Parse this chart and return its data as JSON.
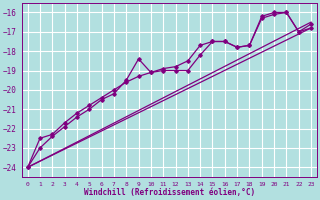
{
  "xlabel": "Windchill (Refroidissement éolien,°C)",
  "bg_color": "#b2e0e0",
  "grid_color": "#ffffff",
  "line_color": "#800080",
  "ylim": [
    -24.5,
    -15.5
  ],
  "xlim": [
    -0.5,
    23.5
  ],
  "yticks": [
    -24,
    -23,
    -22,
    -21,
    -20,
    -19,
    -18,
    -17,
    -16
  ],
  "xticks": [
    0,
    1,
    2,
    3,
    4,
    5,
    6,
    7,
    8,
    9,
    10,
    11,
    12,
    13,
    14,
    15,
    16,
    17,
    18,
    19,
    20,
    21,
    22,
    23
  ],
  "series": [
    {
      "x": [
        0,
        23
      ],
      "y": [
        -24,
        -16.5
      ],
      "marker": ""
    },
    {
      "x": [
        0,
        23
      ],
      "y": [
        -24,
        -16.8
      ],
      "marker": ""
    },
    {
      "x": [
        0,
        1,
        2,
        3,
        4,
        5,
        6,
        7,
        8,
        9,
        10,
        11,
        12,
        13,
        14,
        15,
        16,
        17,
        18,
        19,
        20,
        21,
        22,
        23
      ],
      "y": [
        -24,
        -23,
        -22.4,
        -21.9,
        -21.4,
        -21.0,
        -20.5,
        -20.2,
        -19.5,
        -18.4,
        -19.1,
        -19.0,
        -19.0,
        -19.0,
        -18.2,
        -17.5,
        -17.5,
        -17.8,
        -17.7,
        -16.2,
        -16.0,
        -16.0,
        -17.0,
        -16.6
      ],
      "marker": "D"
    },
    {
      "x": [
        0,
        1,
        2,
        3,
        4,
        5,
        6,
        7,
        8,
        9,
        10,
        11,
        12,
        13,
        14,
        15,
        16,
        17,
        18,
        19,
        20,
        21,
        22,
        23
      ],
      "y": [
        -24,
        -22.5,
        -22.3,
        -21.7,
        -21.2,
        -20.8,
        -20.4,
        -20.0,
        -19.6,
        -19.3,
        -19.1,
        -18.9,
        -18.8,
        -18.5,
        -17.7,
        -17.5,
        -17.5,
        -17.8,
        -17.7,
        -16.3,
        -16.1,
        -16.0,
        -17.0,
        -16.8
      ],
      "marker": "D"
    }
  ]
}
